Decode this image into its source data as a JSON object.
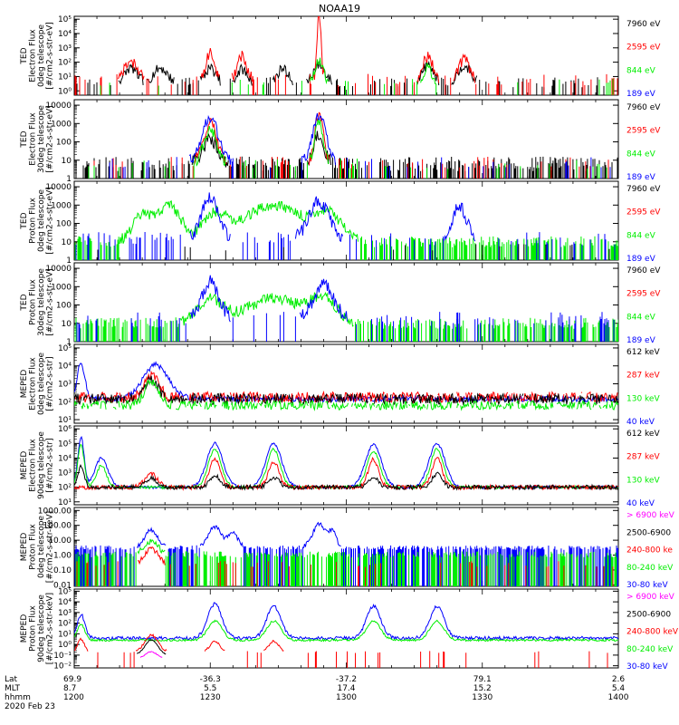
{
  "title": "NOAA19",
  "date": "2020 Feb 23",
  "colors": {
    "red": "#ff0000",
    "green": "#00ee00",
    "blue": "#0000ff",
    "black": "#000000",
    "magenta": "#ff00ff"
  },
  "footer": {
    "labels": [
      "Lat",
      "MLT",
      "hhmm"
    ],
    "columns": [
      {
        "lat": "69.9",
        "mlt": "8.7",
        "hhmm": "1200"
      },
      {
        "lat": "-36.3",
        "mlt": "5.5",
        "hhmm": "1230"
      },
      {
        "lat": "-37.2",
        "mlt": "17.4",
        "hhmm": "1300"
      },
      {
        "lat": "79.1",
        "mlt": "15.2",
        "hhmm": "1330"
      },
      {
        "lat": "2.6",
        "mlt": "5.4",
        "hhmm": "1400"
      }
    ]
  },
  "chart_data": [
    {
      "type": "line",
      "ylabel": [
        "TED",
        "Electron Flux",
        "0deg telescope",
        "[#/cm2-s-str-eV]"
      ],
      "ytick_labels": [
        "10⁰",
        "10¹",
        "10²",
        "10³",
        "10⁴",
        "10⁵"
      ],
      "ytick_exponents": [
        0,
        1,
        2,
        3,
        4,
        5
      ],
      "yrange_log10": [
        -0.3,
        5.2
      ],
      "legend": [
        {
          "text": "7960 eV",
          "color": "black"
        },
        {
          "text": "2595 eV",
          "color": "red"
        },
        {
          "text": "844 eV",
          "color": "green"
        },
        {
          "text": "189 eV",
          "color": "blue"
        }
      ],
      "series": [
        {
          "color": "black",
          "base": 0.6,
          "noise": 0.35,
          "density": 0.18,
          "peaks": [
            [
              12.5,
              1.0,
              1.8
            ],
            [
              19,
              1.0,
              2.0
            ],
            [
              30,
              1.0,
              1.5
            ],
            [
              37,
              0.9,
              1.5
            ],
            [
              46,
              1.0,
              1.5
            ],
            [
              54,
              1.2,
              1.8
            ],
            [
              78,
              1.3,
              1.5
            ],
            [
              86,
              1.2,
              1.8
            ]
          ]
        },
        {
          "color": "red",
          "base": 0.8,
          "noise": 0.4,
          "density": 0.1,
          "peaks": [
            [
              12.5,
              1.3,
              1.8
            ],
            [
              30,
              1.9,
              1.2
            ],
            [
              37,
              1.6,
              1.3
            ],
            [
              54,
              4.5,
              0.6
            ],
            [
              78,
              1.6,
              1.5
            ],
            [
              86,
              1.4,
              1.5
            ]
          ]
        },
        {
          "color": "green",
          "base": 0.6,
          "noise": 0.3,
          "density": 0.05,
          "peaks": [
            [
              54,
              1.5,
              1.2
            ],
            [
              78,
              1.2,
              1.0
            ]
          ]
        }
      ]
    },
    {
      "type": "line",
      "ylabel": [
        "TED",
        "Electron Flux",
        "30deg telescope",
        "[#/cm2-s-str-eV]"
      ],
      "ytick_labels": [
        "1",
        "10",
        "100",
        "1000",
        "10000"
      ],
      "ytick_exponents": [
        0,
        1,
        2,
        3,
        4
      ],
      "yrange_log10": [
        0,
        4.3
      ],
      "legend": [
        {
          "text": "7960 eV",
          "color": "black"
        },
        {
          "text": "2595 eV",
          "color": "red"
        },
        {
          "text": "844 eV",
          "color": "green"
        },
        {
          "text": "189 eV",
          "color": "blue"
        }
      ],
      "series": [
        {
          "color": "black",
          "base": 0.8,
          "noise": 0.4,
          "density": 0.45,
          "peaks": [
            [
              30,
              1.3,
              2.5
            ],
            [
              54,
              1.7,
              1.5
            ]
          ]
        },
        {
          "color": "red",
          "base": 0.9,
          "noise": 0.3,
          "density": 0.1,
          "peaks": [
            [
              30,
              2.2,
              2.0
            ],
            [
              54,
              2.8,
              1.2
            ]
          ]
        },
        {
          "color": "green",
          "base": 0.8,
          "noise": 0.3,
          "density": 0.08,
          "peaks": [
            [
              30,
              1.9,
              2.0
            ],
            [
              54,
              2.4,
              1.2
            ]
          ]
        },
        {
          "color": "blue",
          "base": 0.9,
          "noise": 0.3,
          "density": 0.05,
          "peaks": [
            [
              30,
              2.4,
              2.5
            ],
            [
              54,
              2.6,
              2.0
            ]
          ]
        }
      ]
    },
    {
      "type": "line",
      "ylabel": [
        "TED",
        "Proton Flux",
        "0deg telescope",
        "[#/cm2-s-str-eV]"
      ],
      "ytick_labels": [
        "1",
        "10",
        "100",
        "1000",
        "10000"
      ],
      "ytick_exponents": [
        0,
        1,
        2,
        3,
        4
      ],
      "yrange_log10": [
        0,
        4.3
      ],
      "legend": [
        {
          "text": "7960 eV",
          "color": "black"
        },
        {
          "text": "2595 eV",
          "color": "red"
        },
        {
          "text": "844 eV",
          "color": "green"
        },
        {
          "text": "189 eV",
          "color": "blue"
        }
      ],
      "series": [
        {
          "color": "green",
          "base": 1.0,
          "noise": 0.3,
          "density": 0.5,
          "peaks": [
            [
              15,
              1.4,
              3.0
            ],
            [
              21,
              2.0,
              3.5
            ],
            [
              31,
              1.4,
              4.0
            ],
            [
              44,
              2.0,
              9.0
            ],
            [
              56,
              1.4,
              4.0
            ]
          ]
        },
        {
          "color": "blue",
          "base": 1.2,
          "noise": 0.35,
          "density": 0.12,
          "peaks": [
            [
              30,
              2.3,
              2.5
            ],
            [
              54,
              2.0,
              3.0
            ],
            [
              85,
              1.8,
              2.0
            ]
          ]
        },
        {
          "color": "black",
          "base": 0.7,
          "noise": 0.2,
          "density": 0.02,
          "peaks": []
        }
      ]
    },
    {
      "type": "line",
      "ylabel": [
        "TED",
        "Proton Flux",
        "30deg telescope",
        "[#/cm2-s-str-eV]"
      ],
      "ytick_labels": [
        "1",
        "10",
        "100",
        "1000",
        "10000"
      ],
      "ytick_exponents": [
        0,
        1,
        2,
        3,
        4
      ],
      "yrange_log10": [
        0,
        4.3
      ],
      "legend": [
        {
          "text": "7960 eV",
          "color": "black"
        },
        {
          "text": "2595 eV",
          "color": "red"
        },
        {
          "text": "844 eV",
          "color": "green"
        },
        {
          "text": "189 eV",
          "color": "blue"
        }
      ],
      "series": [
        {
          "color": "green",
          "base": 1.0,
          "noise": 0.3,
          "density": 0.5,
          "peaks": [
            [
              30,
              1.3,
              4.0
            ],
            [
              44,
              1.4,
              8.0
            ],
            [
              55,
              1.3,
              4.0
            ]
          ]
        },
        {
          "color": "blue",
          "base": 1.3,
          "noise": 0.35,
          "density": 0.12,
          "peaks": [
            [
              30,
              2.0,
              2.5
            ],
            [
              55,
              1.8,
              3.0
            ]
          ]
        }
      ]
    },
    {
      "type": "line",
      "ylabel": [
        "MEPED",
        "Electron Flux",
        "0deg telescope",
        "[#/cm2-s-str]"
      ],
      "ytick_labels": [
        "10¹",
        "10²",
        "10³",
        "10⁴",
        "10⁵"
      ],
      "ytick_exponents": [
        1,
        2,
        3,
        4,
        5
      ],
      "yrange_log10": [
        0.8,
        5.2
      ],
      "legend": [
        {
          "text": "612 keV",
          "color": "black"
        },
        {
          "text": "287 keV",
          "color": "red"
        },
        {
          "text": "130 keV",
          "color": "green"
        },
        {
          "text": "40 keV",
          "color": "blue"
        }
      ],
      "series": [
        {
          "color": "blue",
          "base": 2.15,
          "noise": 0.15,
          "density": 1.0,
          "peaks": [
            [
              1.5,
              2.0,
              1.2
            ],
            [
              18,
              1.9,
              4.0
            ]
          ]
        },
        {
          "color": "red",
          "base": 2.25,
          "noise": 0.3,
          "density": 0.9,
          "peaks": [
            [
              17,
              1.2,
              2.2
            ]
          ]
        },
        {
          "color": "black",
          "base": 2.15,
          "noise": 0.3,
          "density": 0.9,
          "peaks": [
            [
              17,
              1.1,
              2.0
            ]
          ]
        },
        {
          "color": "green",
          "base": 1.8,
          "noise": 0.25,
          "density": 0.9,
          "peaks": [
            [
              17,
              1.3,
              2.2
            ]
          ]
        }
      ]
    },
    {
      "type": "line",
      "ylabel": [
        "MEPED",
        "Electron Flux",
        "90deg telescope",
        "[#/cm2-s-str]"
      ],
      "ytick_labels": [
        "10¹",
        "10²",
        "10³",
        "10⁴",
        "10⁵",
        "10⁶"
      ],
      "ytick_exponents": [
        1,
        2,
        3,
        4,
        5,
        6
      ],
      "yrange_log10": [
        0.8,
        6.2
      ],
      "legend": [
        {
          "text": "612 keV",
          "color": "black"
        },
        {
          "text": "287 keV",
          "color": "red"
        },
        {
          "text": "130 keV",
          "color": "green"
        },
        {
          "text": "40 keV",
          "color": "blue"
        }
      ],
      "series": [
        {
          "color": "blue",
          "base": 2.0,
          "noise": 0.1,
          "density": 1.0,
          "peaks": [
            [
              1.5,
              3.4,
              1.0
            ],
            [
              6,
              2.0,
              2.0
            ],
            [
              31,
              3.0,
              2.5
            ],
            [
              44,
              3.0,
              2.5
            ],
            [
              66,
              2.9,
              2.5
            ],
            [
              80,
              3.0,
              2.5
            ]
          ]
        },
        {
          "color": "green",
          "base": 2.0,
          "noise": 0.1,
          "density": 1.0,
          "peaks": [
            [
              1.5,
              2.9,
              1.0
            ],
            [
              6,
              1.5,
              1.5
            ],
            [
              31,
              2.6,
              2.0
            ],
            [
              44,
              2.6,
              2.0
            ],
            [
              66,
              2.5,
              2.0
            ],
            [
              80,
              2.6,
              2.0
            ]
          ]
        },
        {
          "color": "red",
          "base": 2.0,
          "noise": 0.15,
          "density": 1.0,
          "peaks": [
            [
              17,
              0.9,
              2.0
            ],
            [
              31,
              2.0,
              1.6
            ],
            [
              44,
              1.8,
              1.6
            ],
            [
              66,
              1.9,
              1.6
            ],
            [
              80,
              2.0,
              1.6
            ]
          ]
        },
        {
          "color": "black",
          "base": 2.0,
          "noise": 0.15,
          "density": 1.0,
          "peaks": [
            [
              1.5,
              1.5,
              1.0
            ],
            [
              17,
              0.6,
              1.8
            ],
            [
              31,
              0.8,
              1.6
            ],
            [
              44,
              0.7,
              1.6
            ],
            [
              66,
              0.7,
              1.6
            ],
            [
              80,
              0.9,
              1.6
            ]
          ]
        }
      ]
    },
    {
      "type": "line",
      "ylabel": [
        "MEPED",
        "Proton Flux",
        "0deg telescope",
        "[#/cm2-s-str-keV]"
      ],
      "ytick_labels": [
        "0.01",
        "0.10",
        "1.00",
        "10.00",
        "100.00",
        "1000.00"
      ],
      "ytick_exponents": [
        -2,
        -1,
        0,
        1,
        2,
        3
      ],
      "yrange_log10": [
        -2.1,
        3.2
      ],
      "legend": [
        {
          "text": "> 6900 keV",
          "color": "magenta"
        },
        {
          "text": "2500-6900",
          "color": "black"
        },
        {
          "text": "240-800 ke",
          "color": "red"
        },
        {
          "text": "80-240 keV",
          "color": "green"
        },
        {
          "text": "30-80 keV",
          "color": "blue"
        }
      ],
      "series": [
        {
          "color": "blue",
          "base": 0.5,
          "noise": 0.15,
          "density": 0.5,
          "peaks": [
            [
              17,
              1.2,
              2.0
            ],
            [
              31,
              1.4,
              2.0
            ],
            [
              35,
              1.0,
              1.5
            ],
            [
              54,
              1.6,
              2.0
            ],
            [
              57,
              1.0,
              1.2
            ]
          ]
        },
        {
          "color": "green",
          "base": 0.05,
          "noise": 0.2,
          "density": 0.45,
          "peaks": [
            [
              17,
              0.9,
              2.0
            ]
          ]
        },
        {
          "color": "red",
          "base": -0.6,
          "noise": 0.2,
          "density": 0.1,
          "peaks": [
            [
              17,
              1.0,
              2.0
            ]
          ]
        },
        {
          "color": "black",
          "base": -0.8,
          "noise": 0.1,
          "density": 0.0,
          "peaks": [
            [
              17,
              0.0,
              2.0
            ]
          ]
        },
        {
          "color": "magenta",
          "base": -1.3,
          "noise": 0.05,
          "density": 0.0,
          "peaks": [
            [
              17,
              0.0,
              1.8
            ]
          ]
        }
      ]
    },
    {
      "type": "line",
      "ylabel": [
        "MEPED",
        "Proton Flux",
        "90deg telescope",
        "[#/cm2-s-str-keV]"
      ],
      "ytick_labels": [
        "10⁻²",
        "10⁻¹",
        "10⁰",
        "10¹",
        "10²",
        "10³",
        "10⁴",
        "10⁵"
      ],
      "ytick_exponents": [
        -2,
        -1,
        0,
        1,
        2,
        3,
        4,
        5
      ],
      "yrange_log10": [
        -2.2,
        5.2
      ],
      "legend": [
        {
          "text": "> 6900 keV",
          "color": "magenta"
        },
        {
          "text": "2500-6900",
          "color": "black"
        },
        {
          "text": "240-800 keV",
          "color": "red"
        },
        {
          "text": "80-240 keV",
          "color": "green"
        },
        {
          "text": "30-80 keV",
          "color": "blue"
        }
      ],
      "series": [
        {
          "color": "blue",
          "base": 0.6,
          "noise": 0.15,
          "density": 1.0,
          "peaks": [
            [
              1.5,
              2.2,
              1.2
            ],
            [
              31,
              3.2,
              2.2
            ],
            [
              44,
              3.0,
              2.2
            ],
            [
              66,
              3.0,
              2.2
            ],
            [
              80,
              3.0,
              2.2
            ]
          ]
        },
        {
          "color": "green",
          "base": 0.4,
          "noise": 0.1,
          "density": 1.0,
          "peaks": [
            [
              1.5,
              1.5,
              1.2
            ],
            [
              31,
              1.8,
              2.2
            ],
            [
              44,
              1.8,
              2.2
            ],
            [
              66,
              1.8,
              2.2
            ],
            [
              80,
              1.8,
              2.2
            ]
          ]
        },
        {
          "color": "red",
          "base": -0.7,
          "noise": 0.1,
          "density": 0.05,
          "peaks": [
            [
              1.5,
              1.2,
              1.0
            ],
            [
              17,
              1.6,
              2.0
            ],
            [
              31,
              1.0,
              1.5
            ],
            [
              44,
              1.0,
              1.5
            ]
          ]
        },
        {
          "color": "black",
          "base": -1.0,
          "noise": 0.05,
          "density": 0.0,
          "peaks": [
            [
              17,
              1.4,
              2.0
            ]
          ]
        },
        {
          "color": "magenta",
          "base": -1.3,
          "noise": 0.05,
          "density": 0.0,
          "peaks": [
            [
              17,
              0.6,
              1.8
            ]
          ]
        }
      ]
    }
  ]
}
